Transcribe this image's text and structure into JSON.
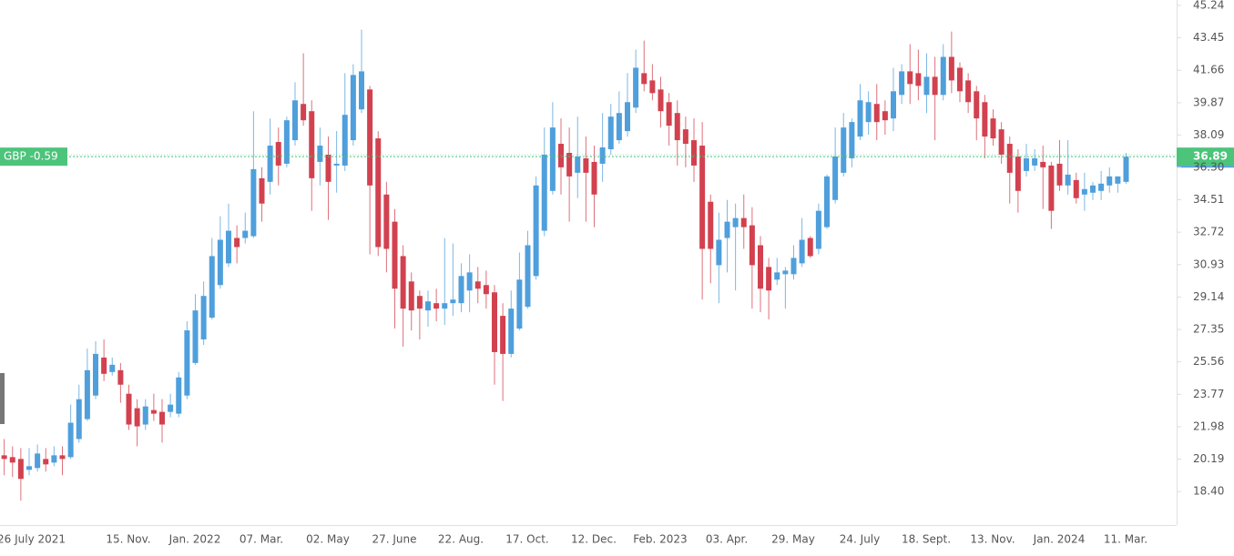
{
  "chart_data": {
    "type": "candlestick",
    "categories": [
      "26 July 2021",
      null,
      null,
      null,
      null,
      null,
      null,
      null,
      null,
      null,
      null,
      null,
      null,
      null,
      null,
      null,
      "15. Nov.",
      null,
      null,
      null,
      null,
      null,
      null,
      null,
      "Jan. 2022",
      null,
      null,
      null,
      null,
      null,
      null,
      null,
      "07. Mar.",
      null,
      null,
      null,
      null,
      null,
      null,
      null,
      "02. May",
      null,
      null,
      null,
      null,
      null,
      null,
      null,
      "27. June",
      null,
      null,
      null,
      null,
      null,
      null,
      null,
      "22. Aug.",
      null,
      null,
      null,
      null,
      null,
      null,
      null,
      "17. Oct.",
      null,
      null,
      null,
      null,
      null,
      null,
      null,
      "12. Dec.",
      null,
      null,
      null,
      null,
      null,
      null,
      null,
      "Feb. 2023",
      null,
      null,
      null,
      null,
      null,
      null,
      null,
      "03. Apr.",
      null,
      null,
      null,
      null,
      null,
      null,
      null,
      "29. May",
      null,
      null,
      null,
      null,
      null,
      null,
      null,
      "24. July",
      null,
      null,
      null,
      null,
      null,
      null,
      null,
      "18. Sept.",
      null,
      null,
      null,
      null,
      null,
      null,
      null,
      "13. Nov.",
      null,
      null,
      null,
      null,
      null,
      null,
      null,
      "Jan. 2024",
      null,
      null,
      null,
      null,
      null,
      null,
      null,
      "11. Mar."
    ],
    "open": [
      20.3,
      20.4,
      20.3,
      20.2,
      19.6,
      19.7,
      20.2,
      20.0,
      20.4,
      20.3,
      21.3,
      22.4,
      23.7,
      25.8,
      25.0,
      25.1,
      23.8,
      23.0,
      22.1,
      22.9,
      22.8,
      22.8,
      22.7,
      23.7,
      25.5,
      26.8,
      28.0,
      29.8,
      31.0,
      32.4,
      32.4,
      32.5,
      35.7,
      35.5,
      37.7,
      36.5,
      37.8,
      39.8,
      39.4,
      36.6,
      37.0,
      36.4,
      36.4,
      37.8,
      39.5,
      40.6,
      37.9,
      34.8,
      33.3,
      31.4,
      30.0,
      29.2,
      28.4,
      28.8,
      28.5,
      28.8,
      28.8,
      29.5,
      30.0,
      29.8,
      29.4,
      28.1,
      26.0,
      27.4,
      28.6,
      30.3,
      32.8,
      35.0,
      37.6,
      37.1,
      36.0,
      36.8,
      36.6,
      36.5,
      37.3,
      37.8,
      38.3,
      39.6,
      41.5,
      41.1,
      40.6,
      39.9,
      39.3,
      38.4,
      37.8,
      37.5,
      34.4,
      30.9,
      32.4,
      33.0,
      33.5,
      33.1,
      32.0,
      30.8,
      30.1,
      30.4,
      30.4,
      31.0,
      32.4,
      31.8,
      33.0,
      34.5,
      36.0,
      36.8,
      38.0,
      38.8,
      39.8,
      39.4,
      39.0,
      40.3,
      41.6,
      41.5,
      40.3,
      41.3,
      40.3,
      42.4,
      41.8,
      41.1,
      40.5,
      39.9,
      39.0,
      38.4,
      37.6,
      36.9,
      36.1,
      36.4,
      36.6,
      36.4,
      36.5,
      35.3,
      35.6,
      34.8,
      34.9,
      35.0,
      35.3,
      35.4,
      35.5
    ],
    "high": [
      21.0,
      21.3,
      20.9,
      20.8,
      20.8,
      21.0,
      20.8,
      20.9,
      20.9,
      23.2,
      24.3,
      26.3,
      26.7,
      26.8,
      25.8,
      25.5,
      24.3,
      23.5,
      23.5,
      23.8,
      23.5,
      23.8,
      25.0,
      27.8,
      29.3,
      30.0,
      32.4,
      33.6,
      34.3,
      33.1,
      33.8,
      39.4,
      36.3,
      39.0,
      38.5,
      39.1,
      41.0,
      42.6,
      40.0,
      38.5,
      38.0,
      38.3,
      41.5,
      42.0,
      43.9,
      40.8,
      38.3,
      35.5,
      34.0,
      32.0,
      30.5,
      29.5,
      29.5,
      29.6,
      32.4,
      32.1,
      31.0,
      31.5,
      30.8,
      30.6,
      29.8,
      28.8,
      29.5,
      31.6,
      32.8,
      35.8,
      38.5,
      39.9,
      39.0,
      38.5,
      39.1,
      38.0,
      37.5,
      39.3,
      39.8,
      40.5,
      41.5,
      42.8,
      43.3,
      42.0,
      41.3,
      40.4,
      40.0,
      39.1,
      39.0,
      38.8,
      34.8,
      33.8,
      34.5,
      34.3,
      34.8,
      34.1,
      32.5,
      31.3,
      31.3,
      30.8,
      32.0,
      33.5,
      32.5,
      34.3,
      35.9,
      38.5,
      39.3,
      39.0,
      40.9,
      40.5,
      40.9,
      40.0,
      41.8,
      42.0,
      43.1,
      42.8,
      42.6,
      42.4,
      43.1,
      43.8,
      42.1,
      41.5,
      40.8,
      40.3,
      39.5,
      38.8,
      38.0,
      37.3,
      37.6,
      37.3,
      37.5,
      36.6,
      37.8,
      37.8,
      36.0,
      36.0,
      35.5,
      36.1,
      36.3,
      35.8,
      37.1
    ],
    "low": [
      19.8,
      19.3,
      19.2,
      17.9,
      19.3,
      19.5,
      19.5,
      19.8,
      19.3,
      20.2,
      21.1,
      22.3,
      23.5,
      24.5,
      24.8,
      23.3,
      21.8,
      20.9,
      21.8,
      22.3,
      21.1,
      22.5,
      22.5,
      23.5,
      25.4,
      26.5,
      27.9,
      29.6,
      30.8,
      31.0,
      32.1,
      32.4,
      33.3,
      34.8,
      35.3,
      36.3,
      37.5,
      38.6,
      33.9,
      35.3,
      33.4,
      34.9,
      36.1,
      37.5,
      39.3,
      31.5,
      31.4,
      30.5,
      27.4,
      26.4,
      27.3,
      26.8,
      27.5,
      27.8,
      27.6,
      28.1,
      28.3,
      28.3,
      28.8,
      28.5,
      24.3,
      23.4,
      25.8,
      27.3,
      28.5,
      30.1,
      32.5,
      34.8,
      34.8,
      33.3,
      34.6,
      33.3,
      33.0,
      35.5,
      37.0,
      37.6,
      38.0,
      39.3,
      40.5,
      40.0,
      38.5,
      37.5,
      36.4,
      36.3,
      35.5,
      29.0,
      29.9,
      28.8,
      30.5,
      29.5,
      31.8,
      28.5,
      28.3,
      27.9,
      29.8,
      28.5,
      30.1,
      30.8,
      31.3,
      31.5,
      32.9,
      34.3,
      35.8,
      36.3,
      37.8,
      38.1,
      37.8,
      38.1,
      38.3,
      39.8,
      39.8,
      40.0,
      39.3,
      37.8,
      40.0,
      40.4,
      39.9,
      39.3,
      37.8,
      36.8,
      37.5,
      36.5,
      34.3,
      33.8,
      35.8,
      36.1,
      34.0,
      32.9,
      35.0,
      34.8,
      34.3,
      33.9,
      34.5,
      34.5,
      34.9,
      34.9,
      35.4
    ],
    "close": [
      20.4,
      20.2,
      20.0,
      19.1,
      19.8,
      20.5,
      19.9,
      20.4,
      20.2,
      22.2,
      23.5,
      25.1,
      26.0,
      24.9,
      25.4,
      24.3,
      22.1,
      22.0,
      23.1,
      22.7,
      22.1,
      23.2,
      24.7,
      27.3,
      28.4,
      29.2,
      31.4,
      32.3,
      32.8,
      31.9,
      32.8,
      36.2,
      34.3,
      37.5,
      36.4,
      38.9,
      40.0,
      38.9,
      35.7,
      37.5,
      35.5,
      36.5,
      39.2,
      41.4,
      41.6,
      35.3,
      31.9,
      31.8,
      29.6,
      28.5,
      28.4,
      28.5,
      28.9,
      28.5,
      28.8,
      29.0,
      30.3,
      30.5,
      29.6,
      29.3,
      26.1,
      26.0,
      28.5,
      30.1,
      32.0,
      35.3,
      37.0,
      38.5,
      36.3,
      35.8,
      36.9,
      36.0,
      34.8,
      37.4,
      39.1,
      39.3,
      39.9,
      41.8,
      40.9,
      40.4,
      39.4,
      38.6,
      37.8,
      37.6,
      36.4,
      31.8,
      31.8,
      32.3,
      33.3,
      33.5,
      33.0,
      30.9,
      29.6,
      29.5,
      30.5,
      30.6,
      31.3,
      32.3,
      31.4,
      33.9,
      35.8,
      36.9,
      38.5,
      38.8,
      40.0,
      39.9,
      38.8,
      38.9,
      40.5,
      41.6,
      40.9,
      40.8,
      41.3,
      40.3,
      42.4,
      41.1,
      40.5,
      39.9,
      39.0,
      38.0,
      37.9,
      37.0,
      36.0,
      35.0,
      36.8,
      36.8,
      36.3,
      33.9,
      35.3,
      35.9,
      34.6,
      35.1,
      35.3,
      35.4,
      35.8,
      35.8,
      36.89
    ],
    "up_color": "#4f9fdc",
    "down_color": "#d2414f",
    "ylim": [
      16.55,
      45.54
    ],
    "yticks": [
      45.24,
      43.45,
      41.66,
      39.87,
      38.09,
      {
        "value": 36.3,
        "label": "36.30"
      },
      34.51,
      32.72,
      30.93,
      29.14,
      27.35,
      25.56,
      23.77,
      21.98,
      20.19,
      {
        "value": 18.4,
        "label": "18.40"
      }
    ],
    "last_price": 36.89,
    "price_line_label": "GBP -0.59",
    "price_color": "#4cc47a"
  }
}
